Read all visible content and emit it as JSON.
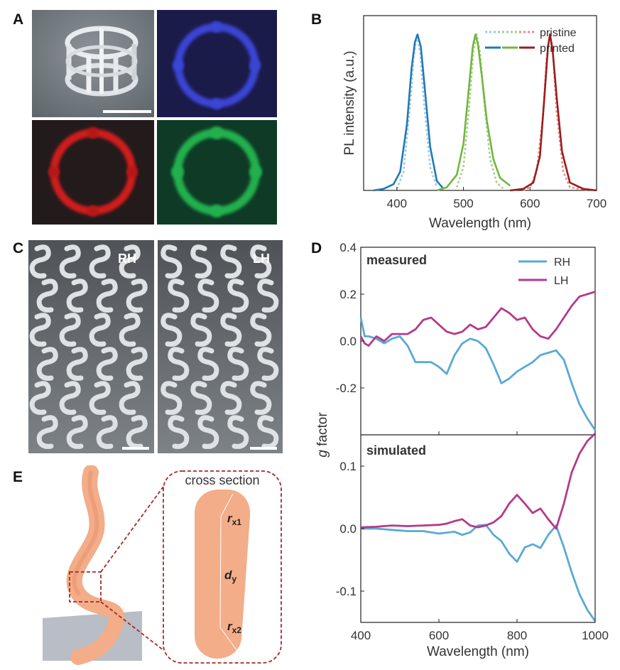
{
  "panels": {
    "a": "A",
    "b": "B",
    "c": "C",
    "d": "D",
    "e": "E"
  },
  "panel_c": {
    "rh": "RH",
    "lh": "LH"
  },
  "panel_e": {
    "title": "cross section",
    "rx1": "r",
    "rx1_sub": "x1",
    "dy": "d",
    "dy_sub": "y",
    "rx2": "r",
    "rx2_sub": "x2"
  },
  "colors": {
    "blue": "#1f7ab8",
    "green": "#72b63e",
    "red": "#9b1c1c",
    "rh": "#5aa9d6",
    "lh": "#b43a8b",
    "body": "#f3ad88"
  },
  "chart_data": [
    {
      "type": "line",
      "xlabel": "Wavelength (nm)",
      "ylabel": "PL intensity (a.u.)",
      "xlim": [
        350,
        700
      ],
      "ylim": [
        0,
        1.12
      ],
      "xticks": [
        "400",
        "500",
        "600",
        "700"
      ],
      "legend": [
        "pristine",
        "printed"
      ],
      "legend_position": "top-right",
      "series": [
        {
          "style": "dotted",
          "color": "#9cc9e6",
          "x": [
            400,
            410,
            420,
            425,
            430,
            435,
            440,
            450,
            460
          ],
          "y": [
            0.01,
            0.12,
            0.55,
            0.85,
            1.0,
            0.88,
            0.6,
            0.15,
            0.02
          ]
        },
        {
          "style": "dotted",
          "color": "#a6d08a",
          "x": [
            490,
            500,
            510,
            515,
            520,
            525,
            530,
            540,
            550,
            560
          ],
          "y": [
            0.02,
            0.15,
            0.6,
            0.9,
            1.0,
            0.88,
            0.62,
            0.2,
            0.05,
            0.01
          ]
        },
        {
          "style": "dotted",
          "color": "#e88a8a",
          "x": [
            590,
            600,
            610,
            620,
            625,
            630,
            635,
            640,
            650,
            660,
            690
          ],
          "y": [
            0.0,
            0.02,
            0.12,
            0.5,
            0.85,
            1.0,
            0.85,
            0.5,
            0.12,
            0.02,
            0.0
          ]
        },
        {
          "style": "solid",
          "color": "#1f7ab8",
          "x": [
            365,
            380,
            395,
            405,
            415,
            422,
            427,
            431,
            436,
            442,
            450,
            460,
            470
          ],
          "y": [
            0.0,
            0.01,
            0.04,
            0.12,
            0.42,
            0.78,
            0.95,
            1.0,
            0.92,
            0.65,
            0.28,
            0.06,
            0.01
          ]
        },
        {
          "style": "solid",
          "color": "#72b63e",
          "x": [
            460,
            475,
            490,
            500,
            508,
            514,
            518,
            522,
            528,
            535,
            545,
            555,
            570
          ],
          "y": [
            0.0,
            0.02,
            0.1,
            0.3,
            0.65,
            0.92,
            1.0,
            0.93,
            0.72,
            0.45,
            0.2,
            0.08,
            0.03
          ]
        },
        {
          "style": "solid",
          "color": "#9b1c1c",
          "x": [
            570,
            590,
            605,
            615,
            622,
            627,
            630,
            634,
            640,
            648,
            660,
            680,
            700
          ],
          "y": [
            0.0,
            0.01,
            0.05,
            0.22,
            0.62,
            0.92,
            1.0,
            0.9,
            0.6,
            0.25,
            0.05,
            0.01,
            0.0
          ]
        }
      ]
    },
    {
      "type": "line",
      "label": "measured",
      "xlim": [
        400,
        1000
      ],
      "ylim": [
        -0.4,
        0.4
      ],
      "yticks": [
        "0.4",
        "0.2",
        "0.0",
        "-0.2"
      ],
      "legend": [
        "RH",
        "LH"
      ],
      "legend_position": "top-right",
      "series": [
        {
          "name": "RH",
          "color": "#5aa9d6",
          "x": [
            400,
            410,
            420,
            440,
            460,
            480,
            500,
            520,
            540,
            560,
            580,
            600,
            620,
            640,
            660,
            680,
            700,
            720,
            740,
            760,
            780,
            800,
            820,
            840,
            860,
            880,
            900,
            920,
            940,
            960,
            980,
            1000
          ],
          "y": [
            0.1,
            0.02,
            0.02,
            0.01,
            -0.01,
            0.01,
            0.02,
            -0.02,
            -0.09,
            -0.09,
            -0.09,
            -0.11,
            -0.14,
            -0.06,
            -0.01,
            0.01,
            0.0,
            -0.03,
            -0.1,
            -0.18,
            -0.16,
            -0.13,
            -0.11,
            -0.09,
            -0.06,
            -0.05,
            -0.04,
            -0.08,
            -0.18,
            -0.27,
            -0.33,
            -0.38
          ]
        },
        {
          "name": "LH",
          "color": "#b43a8b",
          "x": [
            400,
            410,
            420,
            440,
            460,
            480,
            500,
            520,
            540,
            560,
            580,
            600,
            620,
            640,
            660,
            680,
            700,
            720,
            740,
            760,
            780,
            800,
            820,
            840,
            860,
            880,
            900,
            920,
            940,
            960,
            980,
            1000
          ],
          "y": [
            0.02,
            -0.01,
            -0.02,
            0.02,
            0.0,
            0.03,
            0.03,
            0.03,
            0.05,
            0.09,
            0.1,
            0.07,
            0.04,
            0.03,
            0.04,
            0.07,
            0.05,
            0.06,
            0.1,
            0.14,
            0.12,
            0.09,
            0.1,
            0.05,
            0.02,
            0.01,
            0.05,
            0.1,
            0.15,
            0.19,
            0.2,
            0.21
          ]
        }
      ]
    },
    {
      "type": "line",
      "label": "simulated",
      "xlabel": "Wavelength (nm)",
      "xlim": [
        400,
        1000
      ],
      "ylim": [
        -0.15,
        0.15
      ],
      "xticks": [
        "400",
        "600",
        "800",
        "1000"
      ],
      "yticks": [
        "0.1",
        "0.0",
        "-0.1"
      ],
      "series": [
        {
          "name": "RH",
          "color": "#5aa9d6",
          "x": [
            400,
            440,
            480,
            520,
            560,
            600,
            640,
            660,
            680,
            700,
            720,
            740,
            760,
            780,
            800,
            820,
            840,
            860,
            880,
            900,
            920,
            940,
            960,
            980,
            1000
          ],
          "y": [
            0.0,
            0.0,
            -0.002,
            -0.004,
            -0.004,
            -0.008,
            -0.005,
            -0.01,
            -0.006,
            0.005,
            0.006,
            -0.01,
            -0.02,
            -0.04,
            -0.053,
            -0.03,
            -0.025,
            -0.031,
            -0.01,
            0.005,
            -0.03,
            -0.07,
            -0.105,
            -0.13,
            -0.148
          ]
        },
        {
          "name": "LH",
          "color": "#b43a8b",
          "x": [
            400,
            440,
            480,
            520,
            560,
            600,
            620,
            640,
            660,
            680,
            700,
            720,
            740,
            760,
            780,
            800,
            820,
            840,
            860,
            880,
            900,
            920,
            940,
            960,
            980,
            1000
          ],
          "y": [
            0.002,
            0.003,
            0.005,
            0.004,
            0.005,
            0.006,
            0.008,
            0.012,
            0.015,
            0.005,
            0.002,
            0.005,
            0.01,
            0.02,
            0.04,
            0.054,
            0.04,
            0.025,
            0.032,
            0.015,
            0.0,
            0.04,
            0.09,
            0.12,
            0.14,
            0.152
          ]
        }
      ]
    }
  ],
  "chart_d_shared": {
    "ylabel_italic": "g",
    "ylabel_rest": " factor"
  }
}
